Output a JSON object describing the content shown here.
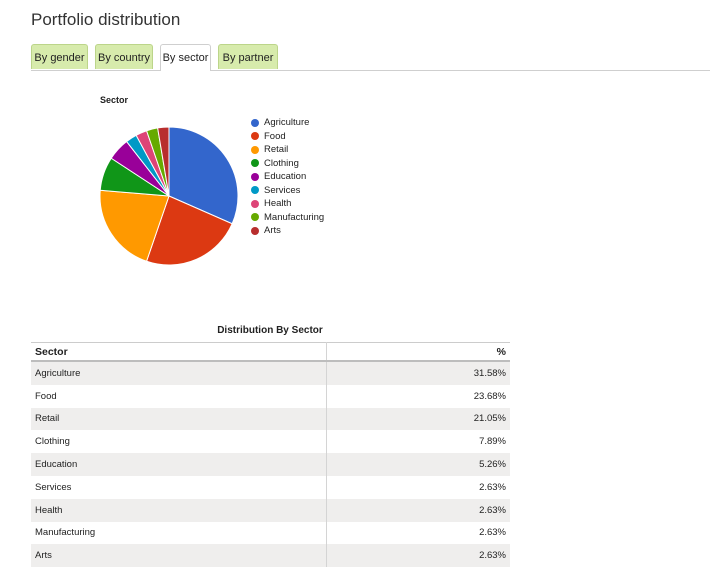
{
  "page": {
    "title": "Portfolio distribution"
  },
  "tabs": [
    {
      "label": "By gender",
      "active": false
    },
    {
      "label": "By country",
      "active": false
    },
    {
      "label": "By sector",
      "active": true
    },
    {
      "label": "By partner",
      "active": false
    }
  ],
  "chart_data": {
    "type": "pie",
    "title": "Sector",
    "legend_position": "right",
    "categories": [
      "Agriculture",
      "Food",
      "Retail",
      "Clothing",
      "Education",
      "Services",
      "Health",
      "Manufacturing",
      "Arts"
    ],
    "values": [
      31.58,
      23.68,
      21.05,
      7.89,
      5.26,
      2.63,
      2.63,
      2.63,
      2.63
    ],
    "colors": [
      "#3366cc",
      "#dc3912",
      "#ff9900",
      "#109618",
      "#990099",
      "#0099c6",
      "#dd4477",
      "#66aa00",
      "#b82e2e"
    ]
  },
  "table": {
    "title": "Distribution By Sector",
    "headers": [
      "Sector",
      "%"
    ],
    "rows": [
      [
        "Agriculture",
        "31.58%"
      ],
      [
        "Food",
        "23.68%"
      ],
      [
        "Retail",
        "21.05%"
      ],
      [
        "Clothing",
        "7.89%"
      ],
      [
        "Education",
        "5.26%"
      ],
      [
        "Services",
        "2.63%"
      ],
      [
        "Health",
        "2.63%"
      ],
      [
        "Manufacturing",
        "2.63%"
      ],
      [
        "Arts",
        "2.63%"
      ]
    ]
  }
}
